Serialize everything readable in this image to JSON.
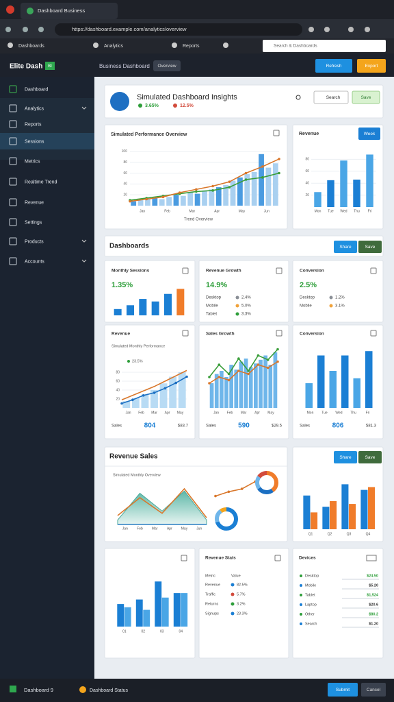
{
  "browser": {
    "tab": "Dashboard Business",
    "url": "https://dashboard.example.com/analytics/overview",
    "bookmarks": [
      "Dashboards",
      "Analytics",
      "Reports"
    ],
    "search": "Search & Dashboards"
  },
  "header": {
    "logo": "Elite Dash",
    "badge": "BI",
    "title": "Business Dashboard",
    "tag": "Overview",
    "buttons": [
      "Refresh",
      "Export"
    ]
  },
  "sidebar": {
    "items": [
      "Dashboard",
      "Analytics",
      "Reports",
      "Sessions",
      "Metrics",
      "Realtime Trend",
      "Revenue",
      "Settings",
      "Products",
      "Accounts"
    ]
  },
  "summary": {
    "title": "Simulated Dashboard Insights",
    "stats": [
      "3.65%",
      "12.5%"
    ],
    "search": "Search",
    "save": "Save"
  },
  "overview": {
    "title": "Simulated Performance Overview",
    "caption": "Trend Overview",
    "categories": [
      "Jan",
      "Feb",
      "Mar",
      "Apr",
      "May",
      "Jun"
    ],
    "ylim": [
      0,
      120
    ],
    "yticks": [
      20,
      40,
      60,
      80,
      100
    ],
    "bars": [
      8,
      10,
      12,
      14,
      12,
      16,
      20,
      18,
      24,
      22,
      28,
      30,
      34,
      38,
      46,
      52,
      58,
      62,
      95,
      70,
      78
    ],
    "line_a": [
      8,
      12,
      16,
      24,
      30,
      36,
      44,
      60,
      72,
      86
    ],
    "line_b": [
      10,
      14,
      18,
      22,
      26,
      28,
      34,
      48,
      52,
      60
    ]
  },
  "revenue": {
    "title": "Revenue",
    "button": "Week",
    "categories": [
      "Mon",
      "Tue",
      "Wed",
      "Thu",
      "Fri"
    ],
    "ylim": [
      0,
      100
    ],
    "yticks": [
      20,
      40,
      60,
      80
    ],
    "values": [
      25,
      45,
      78,
      46,
      88
    ]
  },
  "section_a": {
    "title": "Dashboards",
    "buttons": [
      "Share",
      "Save"
    ]
  },
  "kpis": [
    {
      "title": "Monthly Sessions",
      "value": "1.35%",
      "ylim": [
        0,
        50
      ],
      "bars": [
        10,
        16,
        26,
        22,
        34,
        42
      ]
    },
    {
      "title": "Revenue Growth",
      "value": "14.9%",
      "rows": [
        [
          "Desktop",
          "2.4%"
        ],
        [
          "Mobile",
          "5.0%"
        ],
        [
          "Tablet",
          "3.3%"
        ]
      ]
    },
    {
      "title": "Conversion",
      "value": "2.5%",
      "rows": [
        [
          "Desktop",
          "1.2%"
        ],
        [
          "Mobile",
          "3.1%"
        ]
      ]
    }
  ],
  "mini_charts": [
    {
      "title": "Revenue",
      "subtitle": "Simulated Monthly Performance",
      "label": "23.5%",
      "categories": [
        "Jan",
        "Feb",
        "Mar",
        "Apr",
        "May"
      ],
      "ylim": [
        0,
        100
      ],
      "yticks": [
        20,
        40,
        60,
        80
      ],
      "bars": [
        15,
        22,
        30,
        40,
        55,
        70,
        80
      ],
      "line_a": [
        18,
        28,
        38,
        48,
        60,
        72,
        84
      ],
      "line_b": [
        10,
        18,
        28,
        34,
        44,
        56,
        70
      ],
      "footer": [
        "Sales",
        "804",
        "$83.7"
      ]
    },
    {
      "title": "Sales Growth",
      "categories": [
        "Jan",
        "Feb",
        "Mar",
        "Apr",
        "May"
      ],
      "ylim": [
        0,
        100
      ],
      "bars": [
        40,
        55,
        60,
        50,
        70,
        62,
        75,
        80,
        66,
        72,
        78,
        85,
        70,
        90
      ],
      "line_a": [
        50,
        70,
        55,
        80,
        60,
        85,
        78,
        95
      ],
      "line_b": [
        40,
        50,
        45,
        60,
        55,
        70,
        65,
        75
      ],
      "footer": [
        "Sales",
        "590",
        "$29.5"
      ]
    },
    {
      "title": "Conversion",
      "categories": [
        "Mon",
        "Tue",
        "Wed",
        "Thu",
        "Fri"
      ],
      "ylim": [
        0,
        100
      ],
      "bars": [
        40,
        85,
        60,
        85,
        48,
        92
      ],
      "footer": [
        "Sales",
        "806",
        "$81.3"
      ]
    }
  ],
  "section_b": {
    "title": "Revenue Sales",
    "buttons": [
      "Share",
      "Save"
    ]
  },
  "area": {
    "label": "Simulated Monthly Overview",
    "categories": [
      "Jan",
      "Feb",
      "Mar",
      "Apr",
      "May",
      "Jun"
    ],
    "ylim": [
      0,
      100
    ],
    "area": [
      10,
      70,
      30,
      75,
      10
    ],
    "line": [
      20,
      60,
      25,
      80,
      15
    ],
    "trend": [
      20,
      35,
      45,
      70
    ],
    "donut_a": [
      40,
      25,
      20,
      15
    ],
    "donut_b": [
      70,
      20,
      10
    ]
  },
  "grouped": {
    "categories": [
      "Q1",
      "Q2",
      "Q3",
      "Q4"
    ],
    "ylim": [
      0,
      100
    ],
    "series_a": [
      60,
      40,
      80,
      70
    ],
    "series_b": [
      30,
      50,
      45,
      75
    ]
  },
  "bottom_bars": {
    "categories": [
      "01",
      "02",
      "03",
      "04"
    ],
    "ylim": [
      0,
      100
    ],
    "series_a": [
      35,
      42,
      70,
      52
    ],
    "series_b": [
      30,
      26,
      45,
      52
    ]
  },
  "list_a": {
    "title": "Revenue Stats",
    "header": [
      "Metric",
      "Value"
    ],
    "rows": [
      [
        "Revenue",
        "82.5%"
      ],
      [
        "Traffic",
        "5.7%"
      ],
      [
        "Returns",
        "3.2%"
      ],
      [
        "Signups",
        "23.3%"
      ]
    ]
  },
  "list_b": {
    "title": "Devices",
    "rows": [
      [
        "Desktop",
        "$24.50"
      ],
      [
        "Mobile",
        "$5.20"
      ],
      [
        "Tablet",
        "$1,524"
      ],
      [
        "Laptop",
        "$20.6"
      ],
      [
        "Other",
        "$80.2"
      ],
      [
        "Search",
        "$1.20"
      ]
    ]
  },
  "footer": {
    "status": "Dashboard 9",
    "link": "Dashboard Status",
    "buttons": [
      "Submit",
      "Cancel"
    ]
  }
}
